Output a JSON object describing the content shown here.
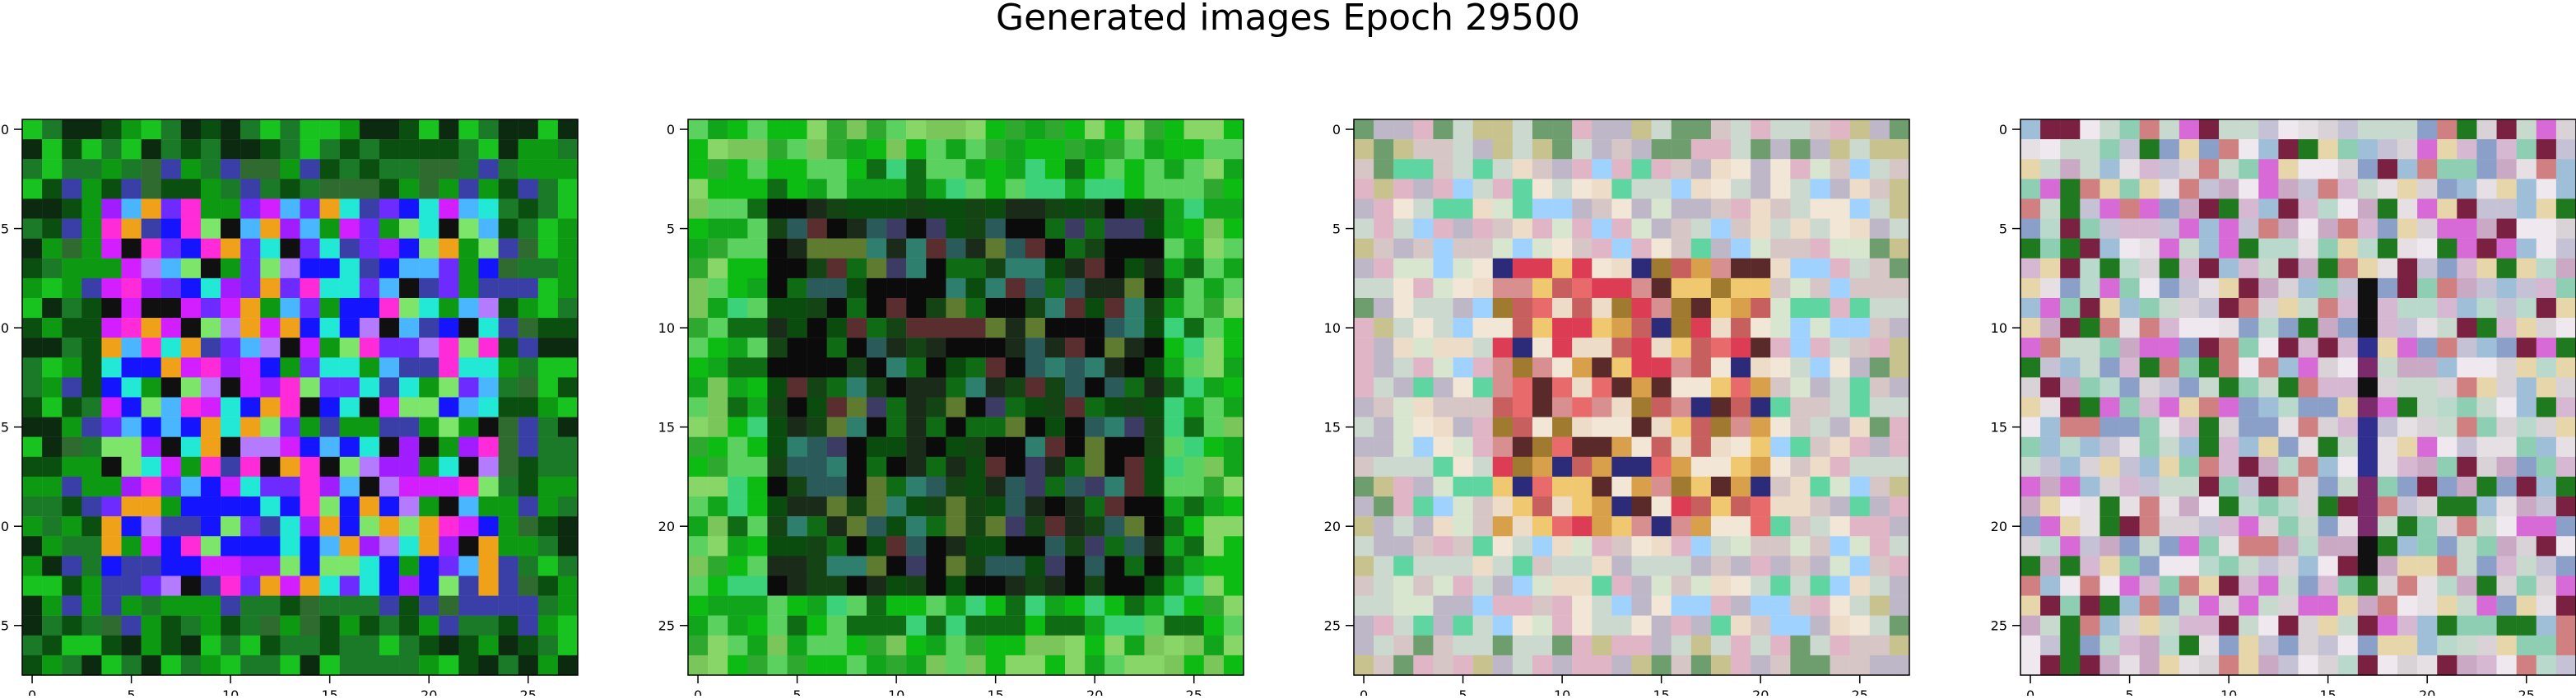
{
  "figure": {
    "title": "Generated images Epoch 29500"
  },
  "chart_data": [
    {
      "type": "heatmap",
      "title": "",
      "xlabel": "",
      "ylabel": "",
      "xlim": [
        -0.5,
        27.5
      ],
      "ylim": [
        27.5,
        -0.5
      ],
      "x_ticks": [
        0,
        5,
        10,
        15,
        20,
        25
      ],
      "y_ticks": [
        0,
        5,
        10,
        15,
        20,
        25
      ],
      "grid": false,
      "grid_size": [
        28,
        28
      ],
      "palette": [
        "#0a4f0f",
        "#0d9a12",
        "#18c21f",
        "#2f6b2e",
        "#0a7a33",
        "#3a3fa8",
        "#1414ff",
        "#6e2bff",
        "#a11dff",
        "#d31fff",
        "#ff2bd8",
        "#7de66a",
        "#49b6ff",
        "#22e8d6",
        "#f0a11a",
        "#c9c86d",
        "#101010",
        "#f0f0f0",
        "#b47aff",
        "#33a85b"
      ],
      "mode": "green-blue-magenta center blob"
    },
    {
      "type": "heatmap",
      "title": "",
      "xlabel": "",
      "ylabel": "",
      "xlim": [
        -0.5,
        27.5
      ],
      "ylim": [
        27.5,
        -0.5
      ],
      "x_ticks": [
        0,
        5,
        10,
        15,
        20,
        25
      ],
      "y_ticks": [
        0,
        5,
        10,
        15,
        20,
        25
      ],
      "grid": false,
      "grid_size": [
        28,
        28
      ],
      "palette": [
        "#0cbc12",
        "#2ea82f",
        "#5bd25f",
        "#88d667",
        "#11a51b",
        "#0f6c14",
        "#0a4b0e",
        "#0b0b0b",
        "#1a2b1a",
        "#3b3b63",
        "#5a2e2e",
        "#2a5a5a",
        "#5f7b2f",
        "#2f7f6f",
        "#a0c020",
        "#7ac65a",
        "#3bd27a",
        "#144414"
      ],
      "mode": "green frame dark center"
    },
    {
      "type": "heatmap",
      "title": "",
      "xlabel": "",
      "ylabel": "",
      "xlim": [
        -0.5,
        27.5
      ],
      "ylim": [
        27.5,
        -0.5
      ],
      "x_ticks": [
        0,
        5,
        10,
        15,
        20,
        25
      ],
      "y_ticks": [
        0,
        5,
        10,
        15,
        20,
        25
      ],
      "grid": false,
      "grid_size": [
        28,
        28
      ],
      "palette": [
        "#d7c6c6",
        "#cbd9cf",
        "#ecdcc8",
        "#e0b6c6",
        "#bdb7c8",
        "#d9e6cf",
        "#c8c28f",
        "#f2e6d6",
        "#d88f8f",
        "#e86a6a",
        "#d8a04a",
        "#c75f5f",
        "#dd3c55",
        "#5fd6a1",
        "#a07a2f",
        "#5a2a2a",
        "#2b2b7a",
        "#a0d2ff",
        "#6e9e6e",
        "#efc870"
      ],
      "mode": "pastel warm center"
    },
    {
      "type": "heatmap",
      "title": "",
      "xlabel": "",
      "ylabel": "",
      "xlim": [
        -0.5,
        27.5
      ],
      "ylim": [
        27.5,
        -0.5
      ],
      "x_ticks": [
        0,
        5,
        10,
        15,
        20,
        25
      ],
      "y_ticks": [
        0,
        5,
        10,
        15,
        20,
        25
      ],
      "grid": false,
      "grid_size": [
        28,
        28
      ],
      "palette": [
        "#d9d3d8",
        "#c8d9ce",
        "#e6dfe4",
        "#d6b8d2",
        "#c6c2d6",
        "#b9d9cd",
        "#f0e8ef",
        "#c9a9c4",
        "#8ecfb3",
        "#9fbfd9",
        "#d86ad8",
        "#7b2b6b",
        "#2f2f8f",
        "#1f7a1f",
        "#7a2040",
        "#111111",
        "#d08080",
        "#e6d6aa",
        "#8aa0c8"
      ],
      "mode": "pastel noisy with dark column"
    }
  ]
}
